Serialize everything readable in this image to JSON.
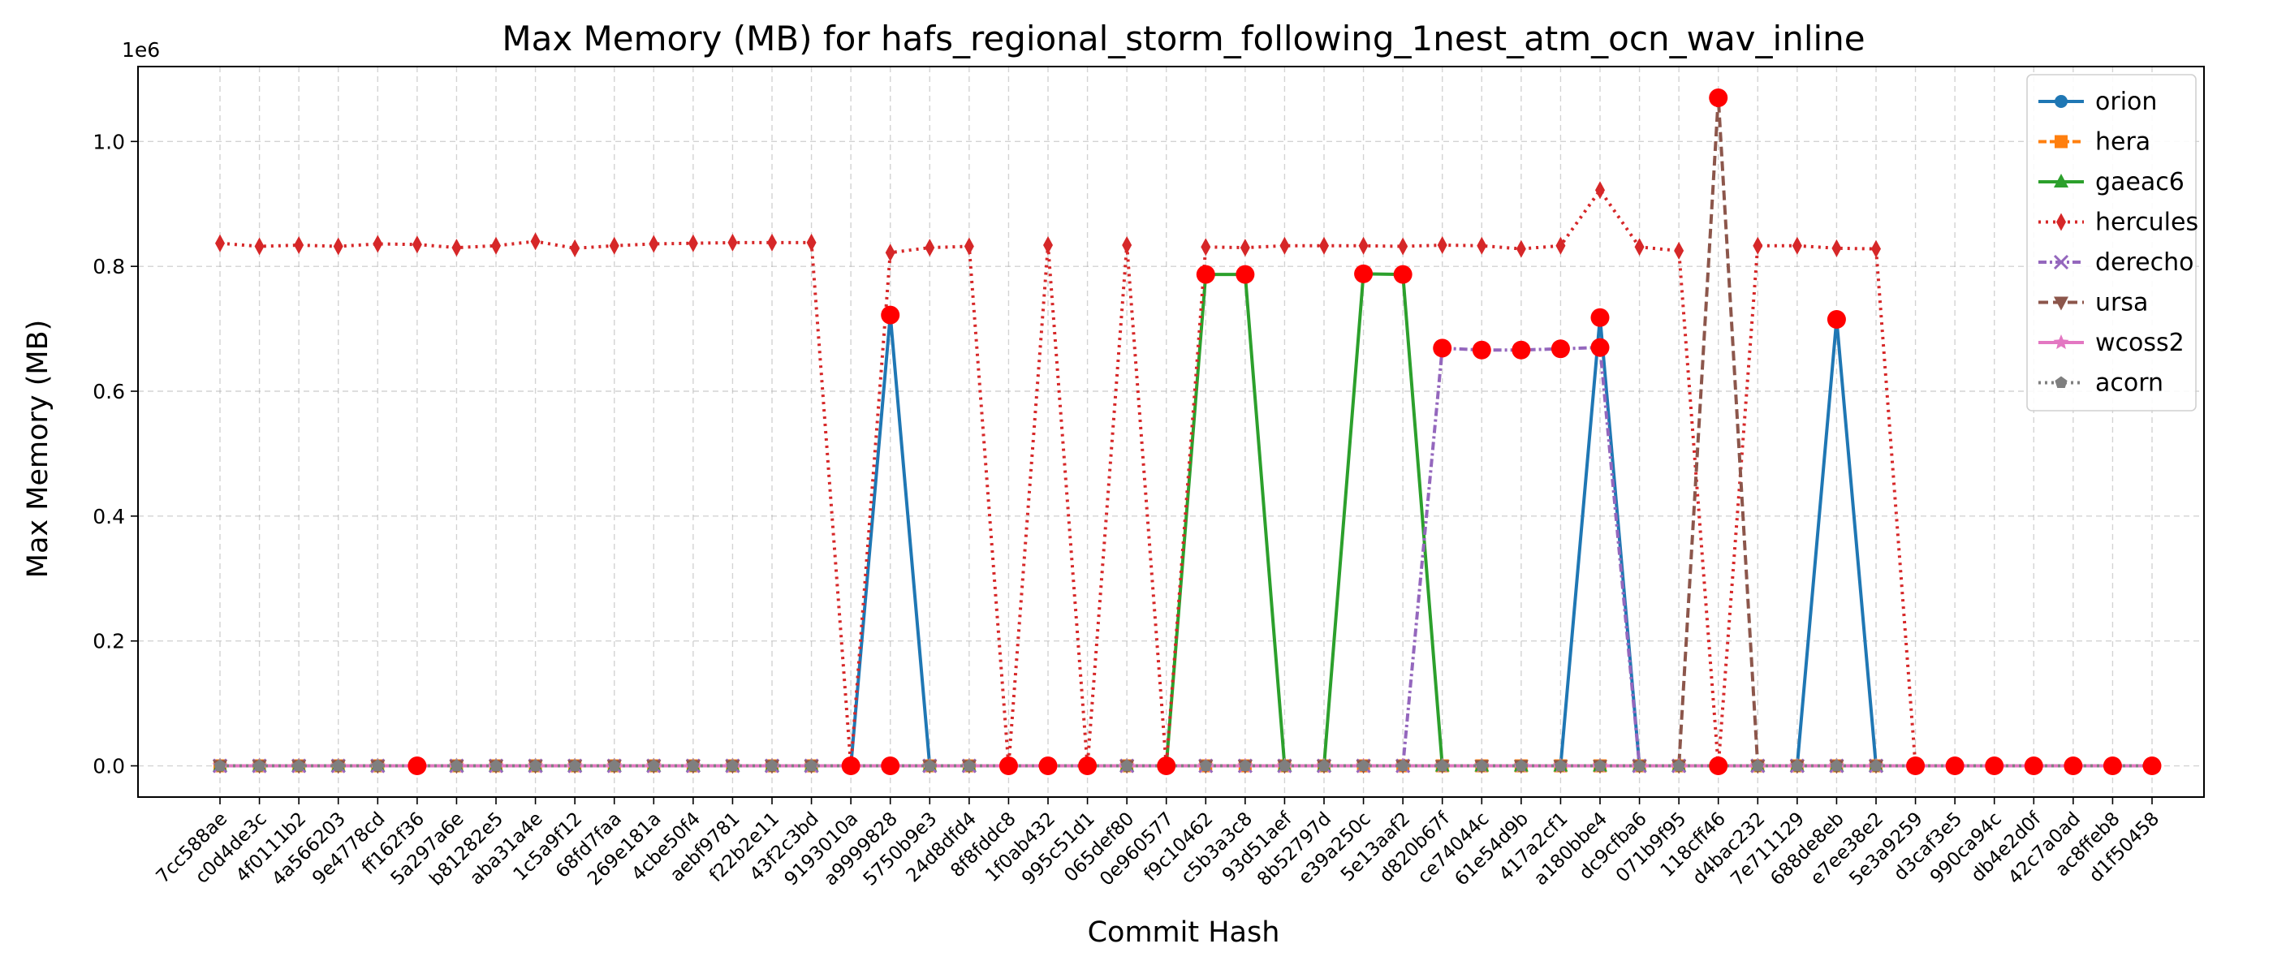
{
  "chart_data": {
    "type": "line",
    "title": "Max Memory (MB) for hafs_regional_storm_following_1nest_atm_ocn_wav_inline",
    "xlabel": "Commit Hash",
    "ylabel": "Max Memory (MB)",
    "y_scale_label": "1e6",
    "y_display_factor": 1000000,
    "ylim": [
      -50000,
      1120000
    ],
    "yticks": [
      0,
      200000,
      400000,
      600000,
      800000,
      1000000
    ],
    "ytick_labels": [
      "0.0",
      "0.2",
      "0.4",
      "0.6",
      "0.8",
      "1.0"
    ],
    "grid": true,
    "legend_position": "top-right",
    "categories": [
      "7cc588ae",
      "c0d4de3c",
      "4f0111b2",
      "4a566203",
      "9e4778cd",
      "ff162f36",
      "5a297a6e",
      "b81282e5",
      "aba31a4e",
      "1c5a9f12",
      "68fd7faa",
      "269e181a",
      "4cbe50f4",
      "aebf9781",
      "f22b2e11",
      "43f2c3bd",
      "9193010a",
      "a9999828",
      "5750b9e3",
      "24d8dfd4",
      "8f8fddc8",
      "1f0ab432",
      "995c51d1",
      "065def80",
      "0e960577",
      "f9c10462",
      "c5b3a3c8",
      "93d51aef",
      "8b52797d",
      "e39a250c",
      "5e13aaf2",
      "d820b67f",
      "ce74044c",
      "61e54d9b",
      "417a2cf1",
      "a180bbe4",
      "dc9cfba6",
      "071b9f95",
      "118cff46",
      "d4bac232",
      "7e711129",
      "688de8eb",
      "e7ee38e2",
      "5e3a9259",
      "d3caf3e5",
      "990ca94c",
      "db4e2d0f",
      "42c7a0ad",
      "ac8ffeb8",
      "d1f50458"
    ],
    "series": [
      {
        "name": "orion",
        "color": "#1f77b4",
        "dash": "",
        "marker": "circle",
        "values": [
          0,
          0,
          0,
          0,
          0,
          0,
          0,
          0,
          0,
          0,
          0,
          0,
          0,
          0,
          0,
          0,
          0,
          722000,
          0,
          0,
          0,
          0,
          0,
          0,
          0,
          0,
          0,
          0,
          0,
          0,
          0,
          0,
          0,
          0,
          0,
          718000,
          0,
          0,
          0,
          0,
          0,
          715000,
          0,
          0,
          0,
          0,
          0,
          0,
          0,
          0
        ]
      },
      {
        "name": "hera",
        "color": "#ff7f0e",
        "dash": "10,4",
        "marker": "square",
        "values": [
          0,
          0,
          0,
          0,
          0,
          0,
          0,
          0,
          0,
          0,
          0,
          0,
          0,
          0,
          0,
          0,
          0,
          0,
          0,
          0,
          0,
          0,
          0,
          0,
          0,
          0,
          0,
          0,
          0,
          0,
          0,
          0,
          0,
          0,
          0,
          0,
          0,
          0,
          0,
          0,
          0,
          0,
          0,
          0,
          0,
          0,
          0,
          0,
          0,
          0
        ]
      },
      {
        "name": "gaeac6",
        "color": "#2ca02c",
        "dash": "",
        "marker": "triangle",
        "values": [
          0,
          0,
          0,
          0,
          0,
          0,
          0,
          0,
          0,
          0,
          0,
          0,
          0,
          0,
          0,
          0,
          0,
          0,
          0,
          0,
          0,
          0,
          0,
          0,
          0,
          787000,
          787000,
          0,
          0,
          788000,
          787000,
          0,
          0,
          0,
          0,
          0,
          0,
          0,
          0,
          0,
          0,
          0,
          0,
          0,
          0,
          0,
          0,
          0,
          0,
          0
        ]
      },
      {
        "name": "hercules",
        "color": "#d62728",
        "dash": "3,6",
        "marker": "diamond",
        "values": [
          837000,
          832000,
          834000,
          832000,
          836000,
          835000,
          830000,
          833000,
          840000,
          829000,
          833000,
          836000,
          837000,
          838000,
          838000,
          838000,
          0,
          822000,
          830000,
          832000,
          0,
          834000,
          0,
          834000,
          0,
          831000,
          830000,
          833000,
          833000,
          833000,
          832000,
          834000,
          833000,
          828000,
          833000,
          922000,
          831000,
          825000,
          0,
          833000,
          833000,
          829000,
          828000,
          0,
          0,
          0,
          0,
          0,
          0,
          0
        ]
      },
      {
        "name": "derecho",
        "color": "#9467bd",
        "dash": "10,4,3,4",
        "marker": "x",
        "values": [
          0,
          0,
          0,
          0,
          0,
          0,
          0,
          0,
          0,
          0,
          0,
          0,
          0,
          0,
          0,
          0,
          0,
          0,
          0,
          0,
          0,
          0,
          0,
          0,
          0,
          0,
          0,
          0,
          0,
          0,
          0,
          669000,
          666000,
          666000,
          668000,
          670000,
          0,
          0,
          0,
          0,
          0,
          0,
          0,
          0,
          0,
          0,
          0,
          0,
          0,
          0
        ]
      },
      {
        "name": "ursa",
        "color": "#8c564b",
        "dash": "12,6",
        "marker": "triangle-down",
        "values": [
          0,
          0,
          0,
          0,
          0,
          0,
          0,
          0,
          0,
          0,
          0,
          0,
          0,
          0,
          0,
          0,
          0,
          0,
          0,
          0,
          0,
          0,
          0,
          0,
          0,
          0,
          0,
          0,
          0,
          0,
          0,
          0,
          0,
          0,
          0,
          0,
          0,
          0,
          1070000,
          0,
          0,
          0,
          0,
          0,
          0,
          0,
          0,
          0,
          0,
          0
        ]
      },
      {
        "name": "wcoss2",
        "color": "#e377c2",
        "dash": "",
        "marker": "star",
        "values": [
          0,
          0,
          0,
          0,
          0,
          0,
          0,
          0,
          0,
          0,
          0,
          0,
          0,
          0,
          0,
          0,
          0,
          0,
          0,
          0,
          0,
          0,
          0,
          0,
          0,
          0,
          0,
          0,
          0,
          0,
          0,
          0,
          0,
          0,
          0,
          0,
          0,
          0,
          0,
          0,
          0,
          0,
          0,
          0,
          0,
          0,
          0,
          0,
          0,
          0
        ]
      },
      {
        "name": "acorn",
        "color": "#7f7f7f",
        "dash": "3,5",
        "marker": "pentagon",
        "values": [
          0,
          0,
          0,
          0,
          0,
          0,
          0,
          0,
          0,
          0,
          0,
          0,
          0,
          0,
          0,
          0,
          0,
          0,
          0,
          0,
          0,
          0,
          0,
          0,
          0,
          0,
          0,
          0,
          0,
          0,
          0,
          0,
          0,
          0,
          0,
          0,
          0,
          0,
          0,
          0,
          0,
          0,
          0,
          0,
          0,
          0,
          0,
          0,
          0,
          0
        ]
      }
    ],
    "highlight_marker_color": "#ff0000",
    "highlights": [
      {
        "category": "ff162f36",
        "value": 0
      },
      {
        "category": "9193010a",
        "value": 0
      },
      {
        "category": "a9999828",
        "value": 722000
      },
      {
        "category": "a9999828",
        "value": 0
      },
      {
        "category": "8f8fddc8",
        "value": 0
      },
      {
        "category": "1f0ab432",
        "value": 0
      },
      {
        "category": "995c51d1",
        "value": 0
      },
      {
        "category": "0e960577",
        "value": 0
      },
      {
        "category": "f9c10462",
        "value": 787000
      },
      {
        "category": "c5b3a3c8",
        "value": 787000
      },
      {
        "category": "e39a250c",
        "value": 788000
      },
      {
        "category": "5e13aaf2",
        "value": 787000
      },
      {
        "category": "d820b67f",
        "value": 669000
      },
      {
        "category": "ce74044c",
        "value": 666000
      },
      {
        "category": "61e54d9b",
        "value": 666000
      },
      {
        "category": "417a2cf1",
        "value": 668000
      },
      {
        "category": "a180bbe4",
        "value": 718000
      },
      {
        "category": "a180bbe4",
        "value": 670000
      },
      {
        "category": "118cff46",
        "value": 1070000
      },
      {
        "category": "118cff46",
        "value": 0
      },
      {
        "category": "688de8eb",
        "value": 715000
      },
      {
        "category": "5e3a9259",
        "value": 0
      },
      {
        "category": "d3caf3e5",
        "value": 0
      },
      {
        "category": "990ca94c",
        "value": 0
      },
      {
        "category": "db4e2d0f",
        "value": 0
      },
      {
        "category": "42c7a0ad",
        "value": 0
      },
      {
        "category": "ac8ffeb8",
        "value": 0
      },
      {
        "category": "d1f50458",
        "value": 0
      }
    ]
  }
}
